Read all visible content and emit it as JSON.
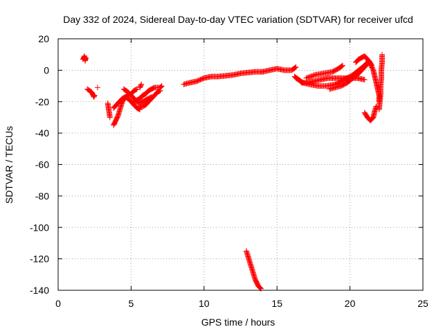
{
  "chart_data": {
    "type": "scatter",
    "title": "Day 332 of 2024, Sidereal Day-to-day VTEC variation (SDTVAR) for receiver ufcd",
    "xlabel": "GPS time / hours",
    "ylabel": "SDTVAR / TECUs",
    "xlim": [
      0,
      25
    ],
    "ylim": [
      -140,
      20
    ],
    "xticks": [
      0,
      5,
      10,
      15,
      20,
      25
    ],
    "yticks": [
      20,
      0,
      -20,
      -40,
      -60,
      -80,
      -100,
      -120,
      -140
    ],
    "grid": true,
    "marker": "+",
    "series": [
      {
        "name": "SDTVAR",
        "color": "#ff0000",
        "segments": [
          [
            [
              1.7,
              7
            ],
            [
              1.75,
              8
            ],
            [
              1.8,
              9
            ],
            [
              1.85,
              6
            ],
            [
              1.9,
              8
            ]
          ],
          [
            [
              2.0,
              -12
            ],
            [
              2.3,
              -14
            ],
            [
              2.4,
              -16
            ],
            [
              2.45,
              -17
            ],
            [
              2.5,
              -16
            ]
          ],
          [
            [
              2.7,
              -11
            ]
          ],
          [
            [
              3.4,
              -21
            ],
            [
              3.45,
              -24
            ],
            [
              3.5,
              -27
            ],
            [
              3.55,
              -30
            ]
          ],
          [
            [
              3.8,
              -35
            ],
            [
              3.9,
              -33
            ],
            [
              4.0,
              -31
            ],
            [
              4.1,
              -29
            ],
            [
              4.2,
              -26
            ],
            [
              4.3,
              -23
            ],
            [
              4.4,
              -20
            ],
            [
              4.6,
              -17
            ],
            [
              4.8,
              -16
            ],
            [
              5.0,
              -15
            ],
            [
              5.2,
              -13
            ],
            [
              5.4,
              -12
            ]
          ],
          [
            [
              3.8,
              -24
            ],
            [
              4.0,
              -22
            ],
            [
              4.2,
              -20
            ],
            [
              4.4,
              -18
            ],
            [
              4.6,
              -17
            ],
            [
              4.8,
              -18
            ],
            [
              5.0,
              -20
            ],
            [
              5.2,
              -22
            ],
            [
              5.4,
              -24
            ],
            [
              5.6,
              -25
            ]
          ],
          [
            [
              4.5,
              -12
            ],
            [
              4.8,
              -14
            ],
            [
              5.0,
              -16
            ],
            [
              5.2,
              -18
            ],
            [
              5.4,
              -20
            ],
            [
              5.6,
              -21
            ],
            [
              5.8,
              -20
            ],
            [
              6.0,
              -19
            ],
            [
              6.2,
              -18
            ],
            [
              6.4,
              -17
            ]
          ],
          [
            [
              5.2,
              -20
            ],
            [
              5.4,
              -19
            ],
            [
              5.6,
              -18
            ],
            [
              5.8,
              -16
            ],
            [
              6.0,
              -15
            ],
            [
              6.2,
              -13
            ],
            [
              6.4,
              -12
            ],
            [
              6.6,
              -11
            ],
            [
              6.8,
              -11
            ],
            [
              7.0,
              -11
            ],
            [
              7.1,
              -10
            ]
          ],
          [
            [
              5.5,
              -24
            ],
            [
              5.8,
              -23
            ],
            [
              6.0,
              -22
            ],
            [
              6.2,
              -20
            ],
            [
              6.4,
              -18
            ],
            [
              6.6,
              -16
            ],
            [
              6.8,
              -14
            ],
            [
              7.0,
              -13
            ]
          ],
          [
            [
              5.6,
              -11
            ],
            [
              5.7,
              -9
            ]
          ],
          [
            [
              8.6,
              -9
            ],
            [
              9.0,
              -8
            ],
            [
              9.5,
              -7
            ],
            [
              10.0,
              -5
            ],
            [
              10.5,
              -4
            ],
            [
              11.0,
              -4
            ],
            [
              11.5,
              -3.5
            ],
            [
              12.0,
              -3
            ],
            [
              12.5,
              -2
            ],
            [
              13.0,
              -1.5
            ],
            [
              13.5,
              -1
            ],
            [
              14.0,
              -1
            ]
          ],
          [
            [
              14.0,
              -1
            ],
            [
              14.5,
              0
            ],
            [
              15.0,
              1
            ],
            [
              15.5,
              0
            ],
            [
              16.0,
              0
            ],
            [
              16.3,
              2
            ]
          ],
          [
            [
              16.2,
              -4
            ],
            [
              16.5,
              -6
            ],
            [
              16.7,
              -8
            ],
            [
              17.0,
              -8
            ],
            [
              17.5,
              -7
            ],
            [
              18.0,
              -6
            ],
            [
              18.5,
              -5
            ],
            [
              19.0,
              -5
            ],
            [
              19.5,
              -5
            ],
            [
              20.0,
              -5
            ],
            [
              20.5,
              -5
            ],
            [
              21.0,
              -6
            ]
          ],
          [
            [
              16.3,
              -5
            ],
            [
              16.8,
              -8
            ],
            [
              17.2,
              -9
            ],
            [
              17.8,
              -10
            ],
            [
              18.4,
              -10
            ],
            [
              19.0,
              -9
            ],
            [
              19.6,
              -6
            ],
            [
              20.2,
              -3
            ],
            [
              20.6,
              0
            ],
            [
              21.0,
              3
            ],
            [
              21.3,
              6
            ],
            [
              21.5,
              3
            ]
          ],
          [
            [
              17.0,
              -5
            ],
            [
              17.6,
              -3
            ],
            [
              18.2,
              -2
            ],
            [
              18.8,
              -1
            ],
            [
              19.2,
              1
            ],
            [
              19.5,
              3
            ]
          ],
          [
            [
              18.6,
              -12
            ],
            [
              19.0,
              -11
            ],
            [
              19.4,
              -10
            ],
            [
              19.8,
              -8
            ],
            [
              20.2,
              -5
            ],
            [
              20.6,
              -2
            ],
            [
              21.0,
              2
            ],
            [
              21.2,
              4
            ]
          ],
          [
            [
              20.4,
              5
            ],
            [
              20.6,
              7
            ],
            [
              20.8,
              8
            ],
            [
              21.0,
              9
            ],
            [
              21.2,
              7
            ],
            [
              21.4,
              4
            ],
            [
              21.6,
              0
            ],
            [
              21.7,
              -4
            ],
            [
              21.8,
              -8
            ],
            [
              21.9,
              -12
            ],
            [
              22.0,
              -16
            ],
            [
              22.0,
              -20
            ]
          ],
          [
            [
              21.0,
              -27
            ],
            [
              21.2,
              -30
            ],
            [
              21.4,
              -32
            ],
            [
              21.6,
              -30
            ],
            [
              21.7,
              -26
            ],
            [
              21.8,
              -23
            ]
          ],
          [
            [
              22.0,
              -25
            ],
            [
              22.05,
              -20
            ],
            [
              22.1,
              -15
            ],
            [
              22.1,
              -10
            ],
            [
              22.15,
              -5
            ],
            [
              22.15,
              0
            ],
            [
              22.2,
              5
            ],
            [
              22.2,
              10
            ]
          ],
          [
            [
              12.9,
              -115
            ],
            [
              13.0,
              -118
            ],
            [
              13.1,
              -121
            ],
            [
              13.2,
              -124
            ],
            [
              13.3,
              -127
            ],
            [
              13.4,
              -130
            ],
            [
              13.5,
              -133
            ],
            [
              13.6,
              -135
            ],
            [
              13.7,
              -137
            ],
            [
              13.8,
              -138
            ],
            [
              13.9,
              -139
            ]
          ]
        ]
      }
    ]
  }
}
